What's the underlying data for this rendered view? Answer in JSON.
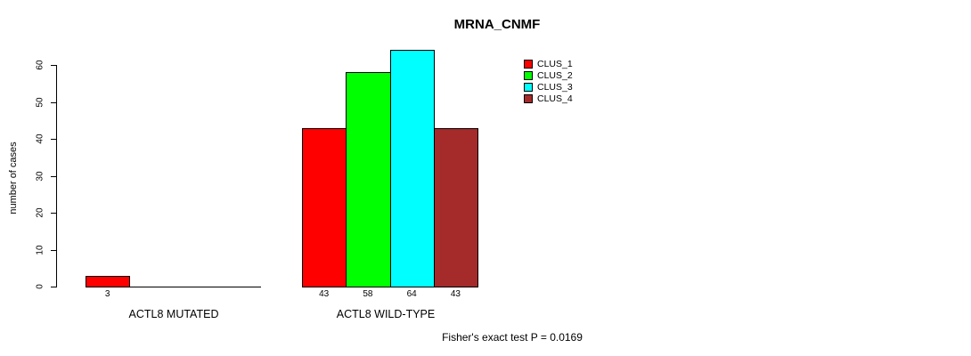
{
  "chart_data": {
    "type": "bar",
    "title": "MRNA_CNMF",
    "ylabel": "number of cases",
    "xlabel": "",
    "ylim": [
      0,
      60
    ],
    "yticks": [
      0,
      10,
      20,
      30,
      40,
      50,
      60
    ],
    "grid": false,
    "legend_position": "top-right",
    "categories": [
      "ACTL8 MUTATED",
      "ACTL8 WILD-TYPE"
    ],
    "series": [
      {
        "name": "CLUS_1",
        "color": "#FF0000",
        "values": [
          3,
          43
        ]
      },
      {
        "name": "CLUS_2",
        "color": "#00FF00",
        "values": [
          0,
          58
        ]
      },
      {
        "name": "CLUS_3",
        "color": "#00FFFF",
        "values": [
          0,
          64
        ]
      },
      {
        "name": "CLUS_4",
        "color": "#A52A2A",
        "values": [
          0,
          43
        ]
      }
    ],
    "bar_value_labels": {
      "shown": true,
      "rule": "only values greater than zero are labeled",
      "visible_labels": [
        "3",
        "43",
        "58",
        "64",
        "43"
      ]
    },
    "annotation": "Fisher's exact test P = 0.0169"
  }
}
